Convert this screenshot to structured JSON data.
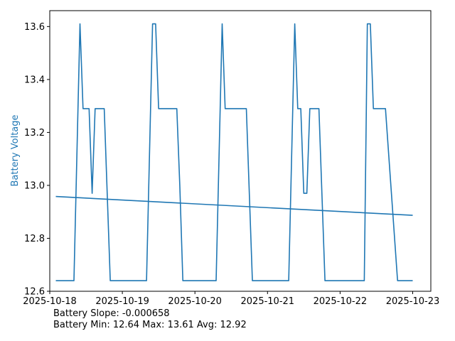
{
  "chart_data": {
    "type": "line",
    "xlabel": "",
    "ylabel": "Battery Voltage",
    "ylabel_color": "#1f77b4",
    "ylim": [
      12.6,
      13.66
    ],
    "xlim": [
      "2025-10-18 00:00",
      "2025-10-23 06:00"
    ],
    "x_ticks": [
      "2025-10-18",
      "2025-10-19",
      "2025-10-20",
      "2025-10-21",
      "2025-10-22",
      "2025-10-23"
    ],
    "y_ticks": [
      "12.6",
      "12.8",
      "13.0",
      "13.2",
      "13.4",
      "13.6"
    ],
    "grid": false,
    "series": [
      {
        "color": "#1f77b4",
        "points": [
          [
            "2025-10-18 02:00",
            12.64
          ],
          [
            "2025-10-18 08:00",
            12.64
          ],
          [
            "2025-10-18 10:00",
            13.61
          ],
          [
            "2025-10-18 11:00",
            13.29
          ],
          [
            "2025-10-18 13:00",
            13.29
          ],
          [
            "2025-10-18 14:00",
            12.97
          ],
          [
            "2025-10-18 15:00",
            13.29
          ],
          [
            "2025-10-18 18:00",
            13.29
          ],
          [
            "2025-10-18 20:00",
            12.64
          ],
          [
            "2025-10-19 08:00",
            12.64
          ],
          [
            "2025-10-19 10:00",
            13.61
          ],
          [
            "2025-10-19 11:00",
            13.61
          ],
          [
            "2025-10-19 12:00",
            13.29
          ],
          [
            "2025-10-19 18:00",
            13.29
          ],
          [
            "2025-10-19 19:00",
            13.0
          ],
          [
            "2025-10-19 20:00",
            12.64
          ],
          [
            "2025-10-20 07:00",
            12.64
          ],
          [
            "2025-10-20 09:00",
            13.61
          ],
          [
            "2025-10-20 10:00",
            13.29
          ],
          [
            "2025-10-20 17:00",
            13.29
          ],
          [
            "2025-10-20 19:00",
            12.64
          ],
          [
            "2025-10-21 07:00",
            12.64
          ],
          [
            "2025-10-21 09:00",
            13.61
          ],
          [
            "2025-10-21 10:00",
            13.29
          ],
          [
            "2025-10-21 11:00",
            13.29
          ],
          [
            "2025-10-21 12:00",
            12.97
          ],
          [
            "2025-10-21 13:00",
            12.97
          ],
          [
            "2025-10-21 14:00",
            13.29
          ],
          [
            "2025-10-21 17:00",
            13.29
          ],
          [
            "2025-10-21 19:00",
            12.64
          ],
          [
            "2025-10-22 08:00",
            12.64
          ],
          [
            "2025-10-22 09:00",
            13.61
          ],
          [
            "2025-10-22 10:00",
            13.61
          ],
          [
            "2025-10-22 11:00",
            13.29
          ],
          [
            "2025-10-22 15:00",
            13.29
          ],
          [
            "2025-10-22 19:00",
            12.64
          ],
          [
            "2025-10-23 00:00",
            12.64
          ]
        ]
      },
      {
        "color": "#1f77b4",
        "points": [
          [
            "2025-10-18 02:00",
            12.958
          ],
          [
            "2025-10-23 00:00",
            12.887
          ]
        ]
      }
    ]
  },
  "footer": {
    "slope": "Battery Slope: -0.000658",
    "stats": "Battery Min: 12.64 Max: 13.61 Avg: 12.92"
  }
}
